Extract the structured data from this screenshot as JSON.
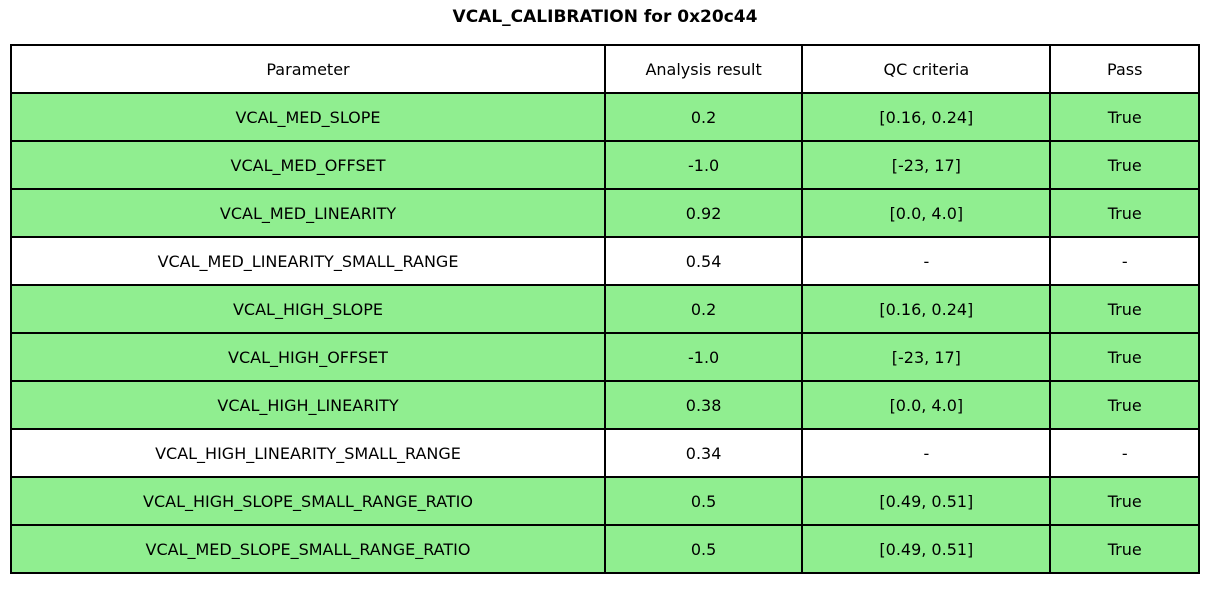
{
  "title": "VCAL_CALIBRATION for 0x20c44",
  "colors": {
    "pass_green": "#90EE90",
    "border": "#000000",
    "text": "#000000",
    "background": "#ffffff"
  },
  "chart_data": {
    "type": "table",
    "title": "VCAL_CALIBRATION for 0x20c44",
    "columns": [
      "Parameter",
      "Analysis result",
      "QC criteria",
      "Pass"
    ],
    "rows": [
      {
        "parameter": "VCAL_MED_SLOPE",
        "analysis_result": "0.2",
        "qc_criteria": "[0.16, 0.24]",
        "pass": "True",
        "highlighted_green": true
      },
      {
        "parameter": "VCAL_MED_OFFSET",
        "analysis_result": "-1.0",
        "qc_criteria": "[-23, 17]",
        "pass": "True",
        "highlighted_green": true
      },
      {
        "parameter": "VCAL_MED_LINEARITY",
        "analysis_result": "0.92",
        "qc_criteria": "[0.0, 4.0]",
        "pass": "True",
        "highlighted_green": true
      },
      {
        "parameter": "VCAL_MED_LINEARITY_SMALL_RANGE",
        "analysis_result": "0.54",
        "qc_criteria": "-",
        "pass": "-",
        "highlighted_green": false
      },
      {
        "parameter": "VCAL_HIGH_SLOPE",
        "analysis_result": "0.2",
        "qc_criteria": "[0.16, 0.24]",
        "pass": "True",
        "highlighted_green": true
      },
      {
        "parameter": "VCAL_HIGH_OFFSET",
        "analysis_result": "-1.0",
        "qc_criteria": "[-23, 17]",
        "pass": "True",
        "highlighted_green": true
      },
      {
        "parameter": "VCAL_HIGH_LINEARITY",
        "analysis_result": "0.38",
        "qc_criteria": "[0.0, 4.0]",
        "pass": "True",
        "highlighted_green": true
      },
      {
        "parameter": "VCAL_HIGH_LINEARITY_SMALL_RANGE",
        "analysis_result": "0.34",
        "qc_criteria": "-",
        "pass": "-",
        "highlighted_green": false
      },
      {
        "parameter": "VCAL_HIGH_SLOPE_SMALL_RANGE_RATIO",
        "analysis_result": "0.5",
        "qc_criteria": "[0.49, 0.51]",
        "pass": "True",
        "highlighted_green": true
      },
      {
        "parameter": "VCAL_MED_SLOPE_SMALL_RANGE_RATIO",
        "analysis_result": "0.5",
        "qc_criteria": "[0.49, 0.51]",
        "pass": "True",
        "highlighted_green": true
      }
    ]
  }
}
